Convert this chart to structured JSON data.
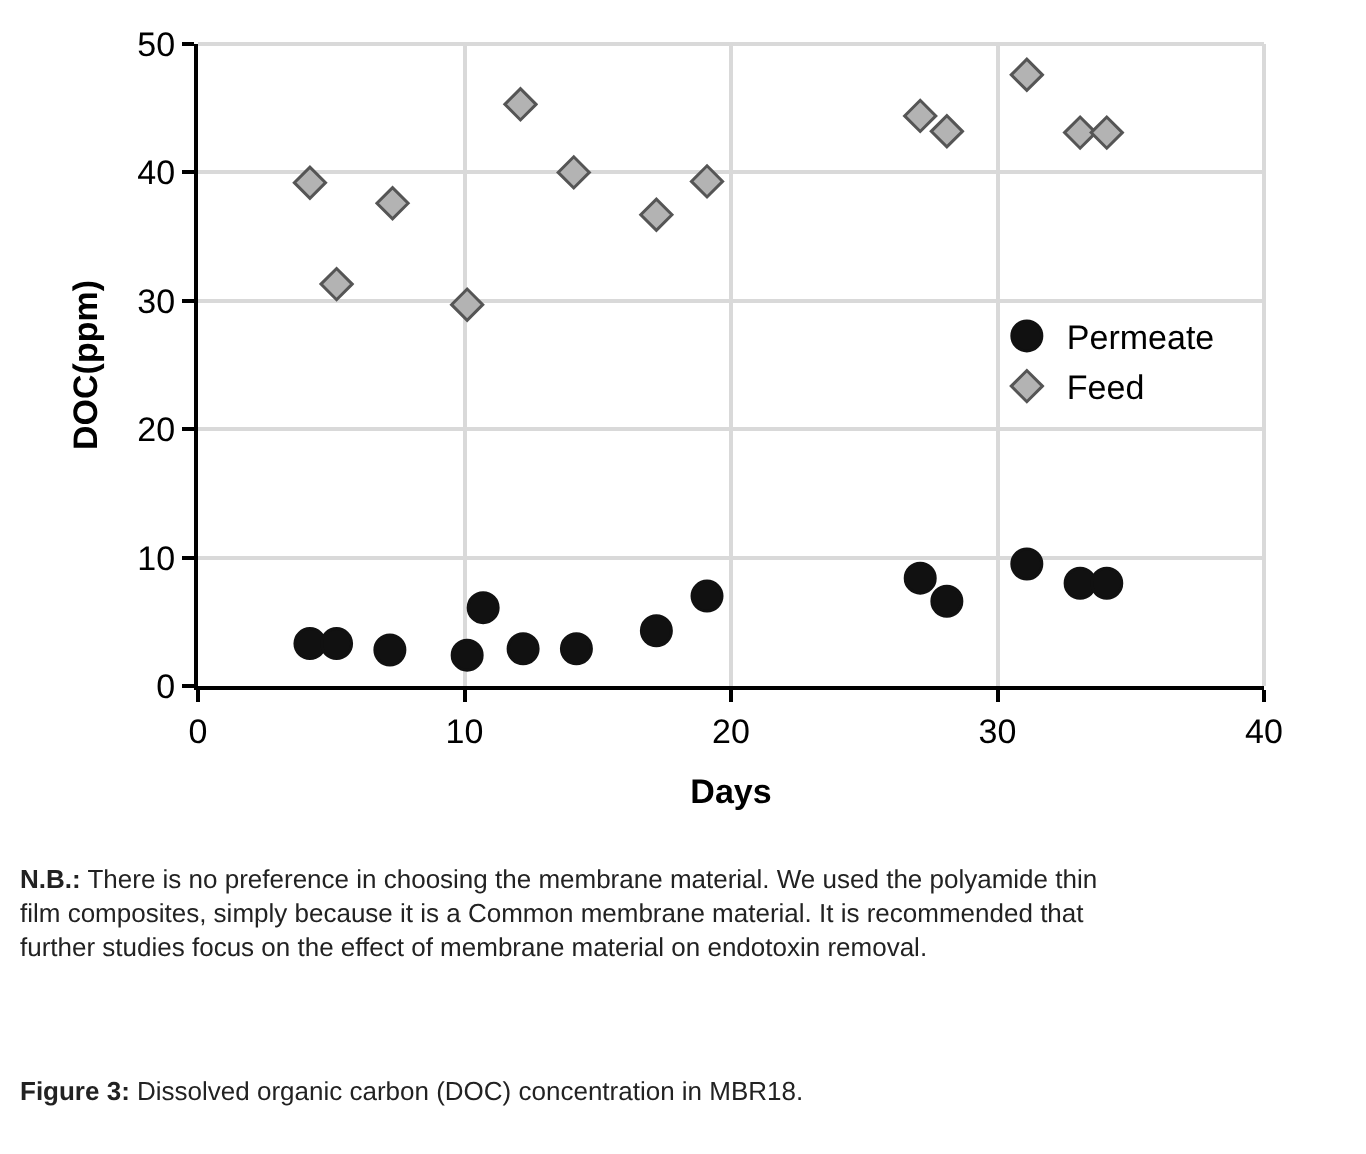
{
  "chart_data": {
    "type": "scatter",
    "xlabel": "Days",
    "ylabel": "DOC(ppm)",
    "xlim": [
      0,
      40
    ],
    "xticks": [
      0,
      10,
      20,
      30,
      40
    ],
    "ylim": [
      0,
      50
    ],
    "yticks": [
      0,
      10,
      20,
      30,
      40,
      50
    ],
    "grid": true,
    "legend": "right",
    "series": [
      {
        "name": "Permeate",
        "color": "#111111",
        "marker": "circle",
        "x": [
          4.2,
          5.2,
          7.2,
          10.1,
          10.7,
          12.2,
          14.2,
          17.2,
          19.1,
          27.1,
          28.1,
          31.1,
          33.1,
          34.1
        ],
        "values": [
          3.3,
          3.3,
          2.8,
          2.4,
          6.1,
          2.9,
          2.9,
          4.3,
          7,
          8.4,
          6.6,
          9.5,
          8,
          8
        ]
      },
      {
        "name": "Feed",
        "color": "#b3b3b3",
        "marker": "diamond",
        "x": [
          4.2,
          5.2,
          7.3,
          10.1,
          12.1,
          14.1,
          17.2,
          19.1,
          27.1,
          28.1,
          31.1,
          33.1,
          34.1
        ],
        "values": [
          39.2,
          31.3,
          37.6,
          29.7,
          45.3,
          40,
          36.7,
          39.3,
          44.4,
          43.2,
          47.6,
          43.1,
          43.1
        ]
      }
    ],
    "annotations": [
      "N.B.: There is no preference in choosing the membrane material. We used the polyamide thin film composites, simply because it is a Common membrane material. It is recommended that further studies focus on the effect of membrane material on endotoxin removal.",
      "Figure 3: Dissolved organic carbon (DOC) concentration in MBR18."
    ]
  }
}
